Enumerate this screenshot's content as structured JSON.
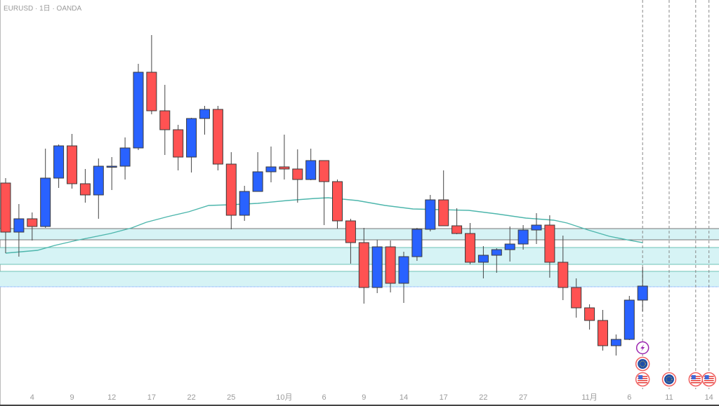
{
  "header": {
    "symbol_title": "EURUSD · 1日 · OANDA"
  },
  "colors": {
    "up": "#2962ff",
    "down": "#ff5252",
    "border": "#3a3a3a",
    "ma": "#4db6ac",
    "zone_fill": "#d6f3f5",
    "zone_line_gray": "#777777",
    "zone_line_teal": "#6cc3b6",
    "event_line": "#888888"
  },
  "chart_data": {
    "type": "candlestick",
    "title": "EURUSD · 1日 · OANDA",
    "xlabel": "",
    "ylabel": "",
    "ylim": [
      1.07,
      1.1264
    ],
    "grid": false,
    "candles": [
      {
        "o": 1.1003,
        "h": 1.101,
        "l": 1.0903,
        "c": 1.0933
      },
      {
        "o": 1.0933,
        "h": 1.0973,
        "l": 1.0898,
        "c": 1.0952
      },
      {
        "o": 1.0952,
        "h": 1.0961,
        "l": 1.0921,
        "c": 1.0941
      },
      {
        "o": 1.0941,
        "h": 1.1052,
        "l": 1.0939,
        "c": 1.101
      },
      {
        "o": 1.101,
        "h": 1.1058,
        "l": 1.0996,
        "c": 1.1056
      },
      {
        "o": 1.1056,
        "h": 1.1073,
        "l": 1.0995,
        "c": 1.1002
      },
      {
        "o": 1.1002,
        "h": 1.1023,
        "l": 1.0975,
        "c": 1.0986
      },
      {
        "o": 1.0986,
        "h": 1.1038,
        "l": 1.0952,
        "c": 1.1027
      },
      {
        "o": 1.1027,
        "h": 1.104,
        "l": 1.0993,
        "c": 1.1027
      },
      {
        "o": 1.1027,
        "h": 1.1068,
        "l": 1.1008,
        "c": 1.1053
      },
      {
        "o": 1.1053,
        "h": 1.1173,
        "l": 1.105,
        "c": 1.1161
      },
      {
        "o": 1.1161,
        "h": 1.1214,
        "l": 1.1101,
        "c": 1.1106
      },
      {
        "o": 1.1106,
        "h": 1.1143,
        "l": 1.1043,
        "c": 1.1079
      },
      {
        "o": 1.1079,
        "h": 1.1086,
        "l": 1.1021,
        "c": 1.104
      },
      {
        "o": 1.104,
        "h": 1.1096,
        "l": 1.1018,
        "c": 1.1095
      },
      {
        "o": 1.1095,
        "h": 1.1113,
        "l": 1.1072,
        "c": 1.1108
      },
      {
        "o": 1.1108,
        "h": 1.1113,
        "l": 1.1021,
        "c": 1.103
      },
      {
        "o": 1.103,
        "h": 1.1047,
        "l": 1.0937,
        "c": 1.0957
      },
      {
        "o": 1.0957,
        "h": 1.0999,
        "l": 1.0949,
        "c": 1.0991
      },
      {
        "o": 1.0991,
        "h": 1.1047,
        "l": 1.0991,
        "c": 1.1019
      },
      {
        "o": 1.1019,
        "h": 1.1055,
        "l": 1.1004,
        "c": 1.1026
      },
      {
        "o": 1.1026,
        "h": 1.1072,
        "l": 1.1008,
        "c": 1.1023
      },
      {
        "o": 1.1023,
        "h": 1.1051,
        "l": 1.0975,
        "c": 1.1008
      },
      {
        "o": 1.1008,
        "h": 1.1052,
        "l": 1.1007,
        "c": 1.1035
      },
      {
        "o": 1.1035,
        "h": 1.1035,
        "l": 1.0943,
        "c": 1.1005
      },
      {
        "o": 1.1005,
        "h": 1.1008,
        "l": 1.0938,
        "c": 1.0949
      },
      {
        "o": 1.0949,
        "h": 1.0952,
        "l": 1.0888,
        "c": 1.0918
      },
      {
        "o": 1.0918,
        "h": 1.0939,
        "l": 1.0831,
        "c": 1.0854
      },
      {
        "o": 1.0854,
        "h": 1.0922,
        "l": 1.0846,
        "c": 1.0912
      },
      {
        "o": 1.0912,
        "h": 1.0921,
        "l": 1.0847,
        "c": 1.086
      },
      {
        "o": 1.086,
        "h": 1.0905,
        "l": 1.0832,
        "c": 1.0898
      },
      {
        "o": 1.0898,
        "h": 1.0939,
        "l": 1.0892,
        "c": 1.0937
      },
      {
        "o": 1.0937,
        "h": 1.0986,
        "l": 1.0934,
        "c": 1.0979
      },
      {
        "o": 1.0979,
        "h": 1.1021,
        "l": 1.0942,
        "c": 1.0942
      },
      {
        "o": 1.0942,
        "h": 1.0967,
        "l": 1.093,
        "c": 1.0931
      },
      {
        "o": 1.0931,
        "h": 1.0946,
        "l": 1.0887,
        "c": 1.089
      },
      {
        "o": 1.089,
        "h": 1.0913,
        "l": 1.0867,
        "c": 1.09
      },
      {
        "o": 1.09,
        "h": 1.091,
        "l": 1.0875,
        "c": 1.0908
      },
      {
        "o": 1.0908,
        "h": 1.0941,
        "l": 1.0891,
        "c": 1.0916
      },
      {
        "o": 1.0916,
        "h": 1.0943,
        "l": 1.0908,
        "c": 1.0936
      },
      {
        "o": 1.0936,
        "h": 1.096,
        "l": 1.0916,
        "c": 1.0943
      },
      {
        "o": 1.0943,
        "h": 1.0957,
        "l": 1.0868,
        "c": 1.089
      },
      {
        "o": 1.089,
        "h": 1.0928,
        "l": 1.0836,
        "c": 1.0854
      },
      {
        "o": 1.0854,
        "h": 1.0867,
        "l": 1.0811,
        "c": 1.0825
      },
      {
        "o": 1.0825,
        "h": 1.083,
        "l": 1.0794,
        "c": 1.0807
      },
      {
        "o": 1.0807,
        "h": 1.0822,
        "l": 1.0764,
        "c": 1.0771
      },
      {
        "o": 1.0771,
        "h": 1.0787,
        "l": 1.0757,
        "c": 1.078
      },
      {
        "o": 1.078,
        "h": 1.0842,
        "l": 1.0779,
        "c": 1.0836
      },
      {
        "o": 1.0836,
        "h": 1.0883,
        "l": 1.082,
        "c": 1.0856
      }
    ],
    "moving_average": [
      [
        0,
        1.0903
      ],
      [
        2.4,
        1.0907
      ],
      [
        3.7,
        1.0914
      ],
      [
        5.3,
        1.0921
      ],
      [
        7.9,
        1.0931
      ],
      [
        9.5,
        1.0939
      ],
      [
        10.6,
        1.0947
      ],
      [
        12.2,
        1.0955
      ],
      [
        13.8,
        1.0962
      ],
      [
        15.3,
        1.0971
      ],
      [
        16.9,
        1.0972
      ],
      [
        19.0,
        1.0974
      ],
      [
        21.2,
        1.0978
      ],
      [
        23.3,
        1.0981
      ],
      [
        24.3,
        1.0982
      ],
      [
        26.5,
        1.0978
      ],
      [
        28.6,
        1.0971
      ],
      [
        30.7,
        1.0966
      ],
      [
        32.8,
        1.0965
      ],
      [
        34.9,
        1.0964
      ],
      [
        37.0,
        1.0959
      ],
      [
        39.2,
        1.0953
      ],
      [
        41.3,
        1.095
      ],
      [
        42.3,
        1.0946
      ],
      [
        43.9,
        1.0936
      ],
      [
        45.5,
        1.0927
      ],
      [
        47.1,
        1.0921
      ],
      [
        48.0,
        1.0918
      ]
    ],
    "zones": [
      {
        "top": 1.0938,
        "bottom": 1.0922,
        "edge": "gray"
      },
      {
        "top": 1.0911,
        "bottom": 1.0887,
        "edge": "teal"
      },
      {
        "top": 1.0877,
        "bottom": 1.0855,
        "edge": "teal"
      }
    ],
    "x_tick_labels": [
      {
        "bar": 2,
        "label": "4"
      },
      {
        "bar": 5,
        "label": "9"
      },
      {
        "bar": 8,
        "label": "12"
      },
      {
        "bar": 11,
        "label": "17"
      },
      {
        "bar": 14,
        "label": "22"
      },
      {
        "bar": 17,
        "label": "25"
      },
      {
        "bar": 21,
        "label": "10月"
      },
      {
        "bar": 24,
        "label": "6"
      },
      {
        "bar": 27,
        "label": "9"
      },
      {
        "bar": 30,
        "label": "14"
      },
      {
        "bar": 33,
        "label": "17"
      },
      {
        "bar": 36,
        "label": "22"
      },
      {
        "bar": 39,
        "label": "27"
      },
      {
        "bar": 44,
        "label": "11月"
      },
      {
        "bar": 47,
        "label": "6"
      },
      {
        "bar": 50,
        "label": "11"
      },
      {
        "bar": 53,
        "label": "14"
      }
    ],
    "events": [
      {
        "bar": 48,
        "icons": [
          "lightning",
          "eu-flag",
          "us-flag"
        ]
      },
      {
        "bar": 50,
        "icons": [
          "eu-flag"
        ]
      },
      {
        "bar": 52,
        "icons": [
          "us-flag"
        ]
      },
      {
        "bar": 53,
        "icons": [
          "us-flag"
        ]
      }
    ]
  }
}
